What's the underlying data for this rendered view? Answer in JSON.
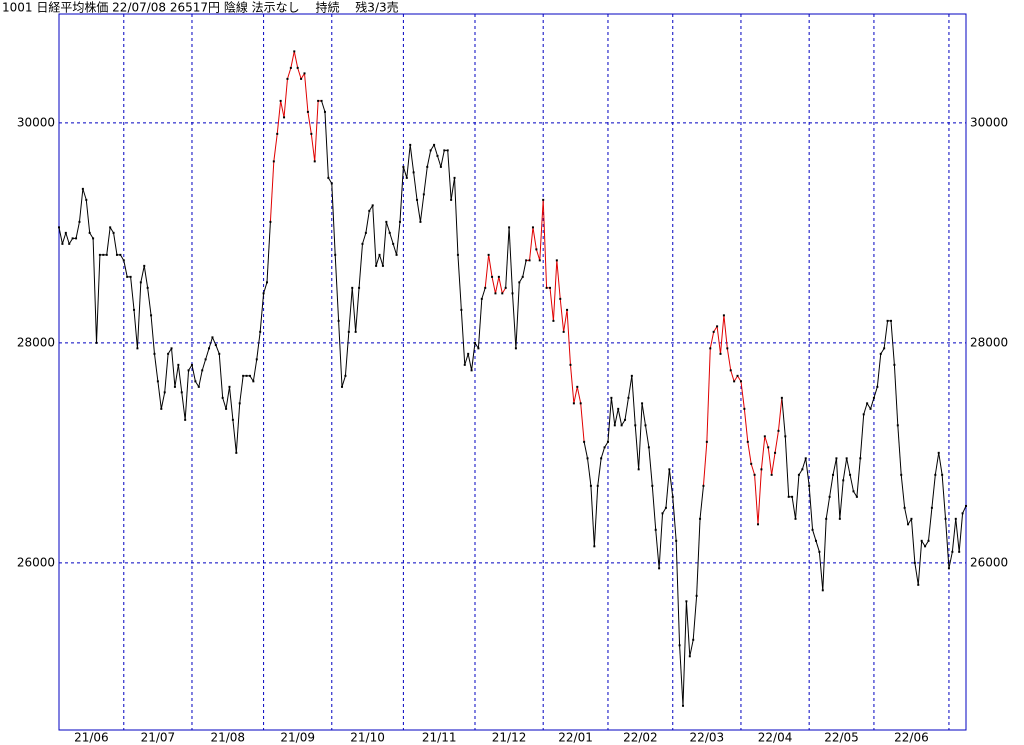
{
  "chart_data": {
    "type": "line",
    "title": "1001 日経平均株価 22/07/08 26517円 陰線 法示なし　 持続　 残3/3売",
    "xlim": [
      0,
      266
    ],
    "xticks": [
      0,
      19,
      39,
      60,
      80,
      101,
      122,
      142,
      161,
      180,
      200,
      220,
      239,
      261
    ],
    "month_labels": [
      "21/06",
      "21/07",
      "21/08",
      "21/09",
      "21/10",
      "21/11",
      "21/12",
      "22/01",
      "22/02",
      "22/03",
      "22/04",
      "22/05",
      "22/06"
    ],
    "ylim": [
      24480,
      30990
    ],
    "yticks": [
      26000,
      28000,
      30000
    ],
    "grid": true,
    "line_color": "#000000",
    "highlight_color": "#e00000",
    "highlight_ranges": [
      [
        62,
        77
      ],
      [
        125,
        131
      ],
      [
        137,
        154
      ],
      [
        189,
        212
      ]
    ],
    "series": [
      {
        "color": "#000000",
        "values": [
          29050,
          28900,
          29000,
          28900,
          28950,
          28950,
          29100,
          29400,
          29300,
          29000,
          28950,
          28000,
          28800,
          28800,
          28800,
          29050,
          29000,
          28800,
          28800,
          28750,
          28600,
          28600,
          28300,
          27950,
          28550,
          28700,
          28500,
          28250,
          27900,
          27650,
          27400,
          27550,
          27900,
          27950,
          27600,
          27800,
          27550,
          27300,
          27750,
          27800,
          27650,
          27600,
          27750,
          27850,
          27950,
          28050,
          27980,
          27900,
          27500,
          27400,
          27600,
          27300,
          27000,
          27450,
          27700,
          27700,
          27700,
          27650,
          27850,
          28100,
          28450,
          28550,
          29100,
          29650,
          29900,
          30200,
          30050,
          30400,
          30500,
          30650,
          30500,
          30400,
          30450,
          30100,
          29900,
          29650,
          30200,
          30200,
          30100,
          29500,
          29450,
          28800,
          28200,
          27600,
          27700,
          28100,
          28500,
          28100,
          28500,
          28900,
          29000,
          29200,
          29250,
          28700,
          28800,
          28700,
          29100,
          29000,
          28900,
          28800,
          29100,
          29600,
          29500,
          29800,
          29550,
          29300,
          29100,
          29350,
          29600,
          29750,
          29800,
          29700,
          29600,
          29750,
          29750,
          29300,
          29500,
          28800,
          28300,
          27800,
          27900,
          27750,
          28000,
          27950,
          28400,
          28500,
          28800,
          28600,
          28450,
          28600,
          28450,
          28500,
          29050,
          28450,
          27950,
          28550,
          28600,
          28750,
          28750,
          29050,
          28850,
          28750,
          29300,
          28500,
          28500,
          28200,
          28750,
          28400,
          28100,
          28300,
          27800,
          27450,
          27600,
          27450,
          27100,
          26950,
          26700,
          26150,
          26700,
          26950,
          27050,
          27100,
          27500,
          27250,
          27400,
          27250,
          27300,
          27500,
          27700,
          27250,
          26850,
          27450,
          27250,
          27050,
          26700,
          26300,
          25950,
          26450,
          26500,
          26850,
          26600,
          26200,
          25250,
          24700,
          25650,
          25150,
          25300,
          25700,
          26400,
          26700,
          27100,
          27950,
          28100,
          28150,
          27900,
          28250,
          27950,
          27750,
          27650,
          27700,
          27650,
          27400,
          27100,
          26900,
          26800,
          26350,
          26850,
          27150,
          27050,
          26800,
          27000,
          27200,
          27500,
          27150,
          26600,
          26600,
          26400,
          26800,
          26850,
          26950,
          26700,
          26300,
          26200,
          26100,
          25750,
          26400,
          26600,
          26800,
          26950,
          26400,
          26750,
          26950,
          26800,
          26650,
          26600,
          26950,
          27350,
          27450,
          27400,
          27500,
          27600,
          27900,
          27950,
          28200,
          28200,
          27800,
          27250,
          26800,
          26500,
          26350,
          26400,
          26000,
          25800,
          26200,
          26150,
          26200,
          26500,
          26800,
          27000,
          26800,
          26400,
          25950,
          26100,
          26400,
          26100,
          26450,
          26517
        ]
      }
    ]
  }
}
